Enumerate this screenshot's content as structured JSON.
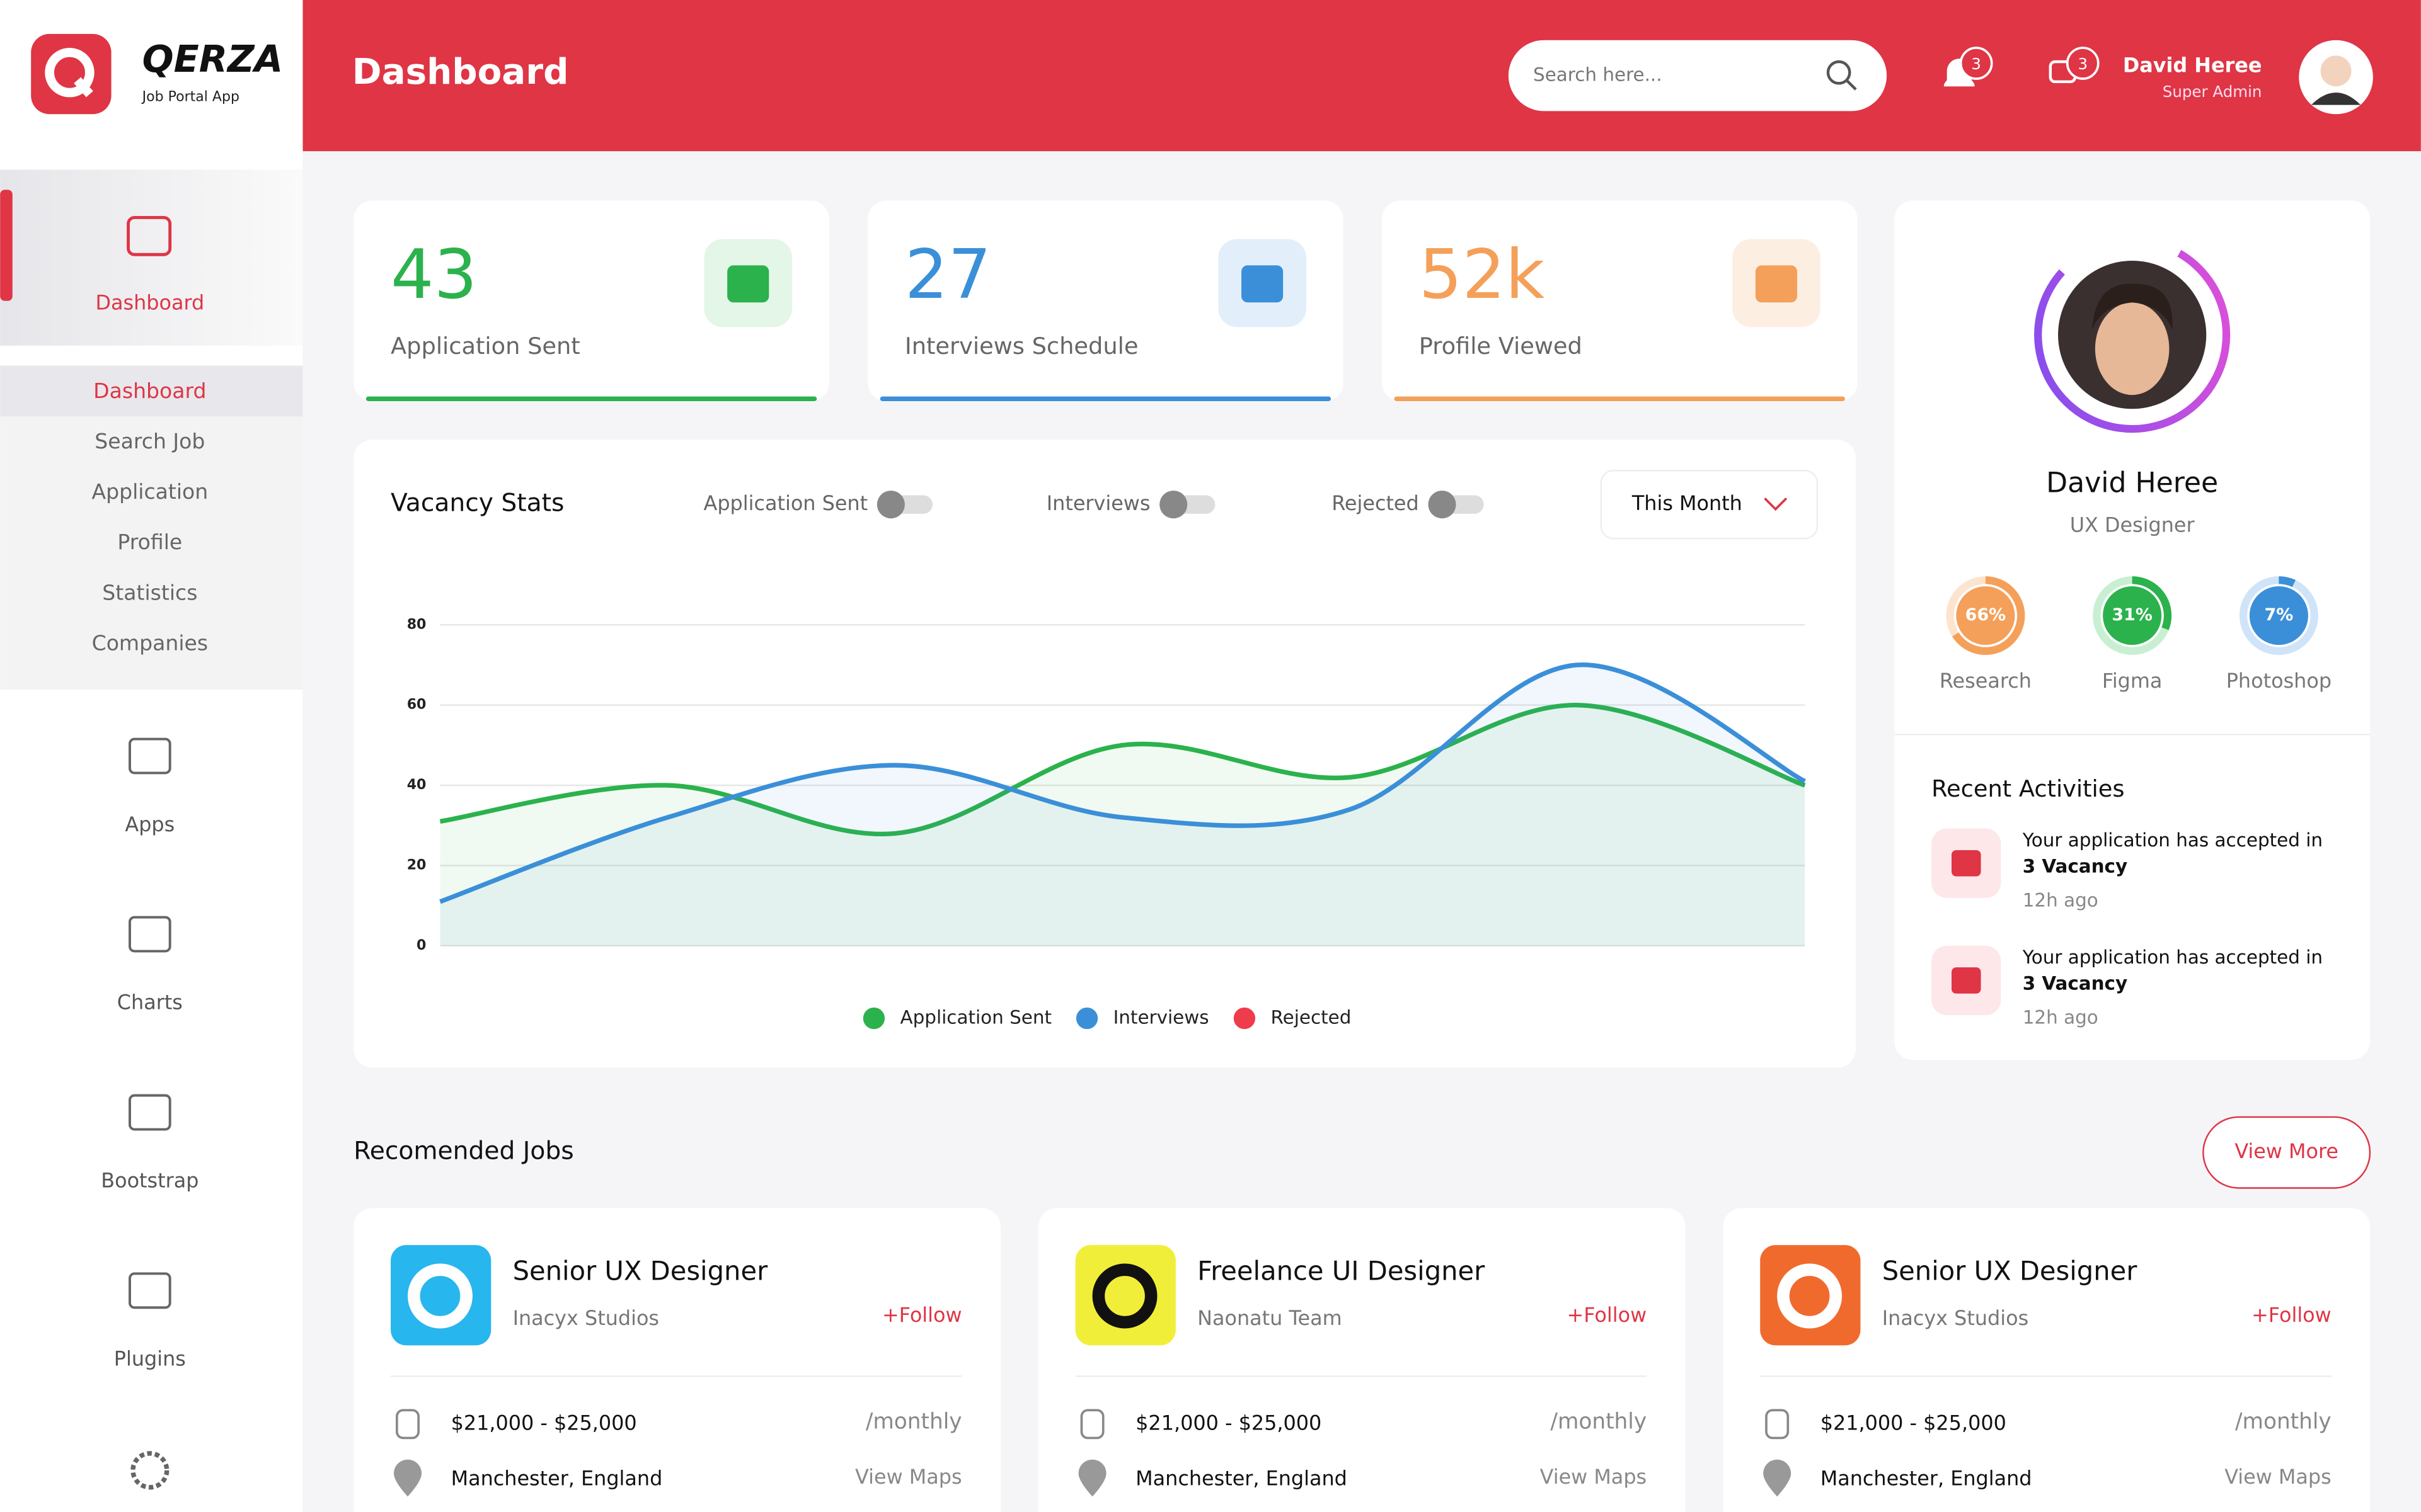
{
  "brand": {
    "name": "QERZA",
    "tagline": "Job Portal App"
  },
  "header": {
    "title": "Dashboard",
    "search_placeholder": "Search here...",
    "notifications": 3,
    "messages": 3,
    "user": {
      "name": "David Heree",
      "role": "Super Admin"
    }
  },
  "sidebar": {
    "active": "Dashboard",
    "submenu": [
      "Dashboard",
      "Search Job",
      "Application",
      "Profile",
      "Statistics",
      "Companies"
    ],
    "items": [
      "Apps",
      "Charts",
      "Bootstrap",
      "Plugins"
    ]
  },
  "stats": [
    {
      "value": 43,
      "label": "Application Sent",
      "color": "#2bb24c",
      "tint": "#e3f6e7"
    },
    {
      "value": 27,
      "label": "Interviews Schedule",
      "color": "#3b8fd8",
      "tint": "#e2effb"
    },
    {
      "value": "52k",
      "label": "Profile Viewed",
      "color": "#f4a05a",
      "tint": "#fdeee2"
    }
  ],
  "chart_data": {
    "type": "line",
    "title": "Vacancy Stats",
    "period": "This Month",
    "categories": [
      null,
      null,
      null,
      null,
      null,
      null,
      null
    ],
    "series": [
      {
        "name": "Application Sent",
        "color": "#2bb24c",
        "values": [
          31,
          40,
          28,
          50,
          42,
          60,
          40
        ]
      },
      {
        "name": "Interviews",
        "color": "#3b8fd8",
        "values": [
          11,
          32,
          45,
          32,
          34,
          70,
          41
        ]
      },
      {
        "name": "Rejected",
        "color": "#ef3b4b",
        "values": [
          null,
          null,
          null,
          null,
          null,
          null,
          null
        ]
      }
    ],
    "ylim": [
      0,
      80
    ],
    "yticks": [
      0,
      20,
      40,
      60,
      80
    ],
    "grid": true
  },
  "profile": {
    "name": "David Heree",
    "role": "UX Designer",
    "skills": [
      {
        "name": "Research",
        "value": 66,
        "label": "66%",
        "color": "#f4a05a",
        "track": "#fde4cf"
      },
      {
        "name": "Figma",
        "value": 31,
        "label": "31%",
        "color": "#2bb24c",
        "track": "#c9efd2"
      },
      {
        "name": "Photoshop",
        "value": 7,
        "label": "7%",
        "color": "#3b8fd8",
        "track": "#cfe4f8"
      }
    ]
  },
  "activities": {
    "title": "Recent Activities",
    "items": [
      {
        "text": "Your application has accepted in",
        "bold": "3 Vacancy",
        "time": "12h ago"
      },
      {
        "text": "Your application has accepted in",
        "bold": "3 Vacancy",
        "time": "12h ago"
      }
    ]
  },
  "jobs": {
    "title": "Recomended Jobs",
    "more": "View More",
    "items": [
      {
        "title": "Senior UX Designer",
        "company": "Inacyx Studios",
        "follow": "+Follow",
        "salary": "$21,000 - $25,000",
        "period": "/monthly",
        "location": "Manchester, England",
        "map": "View Maps",
        "color": "#27b6ee"
      },
      {
        "title": "Freelance UI Designer",
        "company": "Naonatu Team",
        "follow": "+Follow",
        "salary": "$21,000 - $25,000",
        "period": "/monthly",
        "location": "Manchester, England",
        "map": "View Maps",
        "color": "#f1ee3a"
      },
      {
        "title": "Senior UX Designer",
        "company": "Inacyx Studios",
        "follow": "+Follow",
        "salary": "$21,000 - $25,000",
        "period": "/monthly",
        "location": "Manchester, England",
        "map": "View Maps",
        "color": "#f06a2e"
      }
    ]
  }
}
